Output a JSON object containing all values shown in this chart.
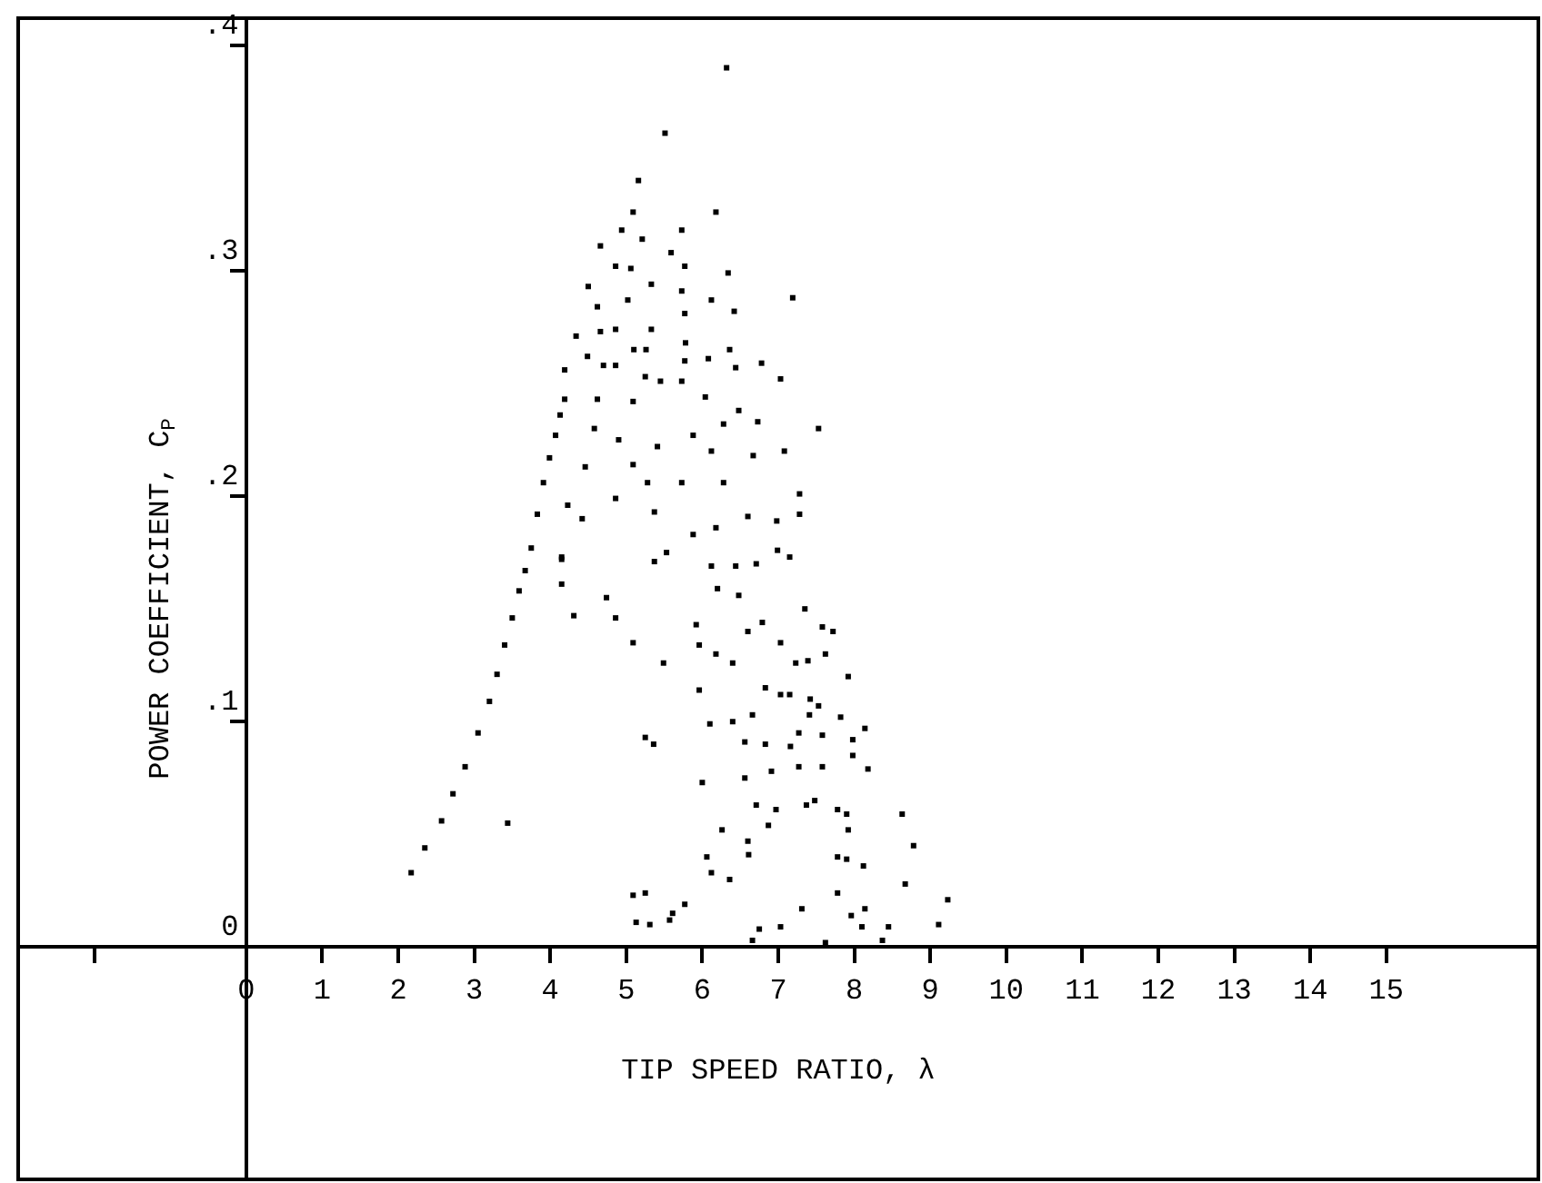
{
  "chart_data": {
    "type": "scatter",
    "xlabel": "TIP SPEED RATIO, λ",
    "ylabel": "POWER COEFFICIENT, C$_{P}$",
    "xlim": [
      -3,
      17
    ],
    "ylim": [
      -0.103,
      0.412
    ],
    "xticks": [
      {
        "value": -2,
        "label": null
      },
      0,
      1,
      2,
      3,
      4,
      5,
      6,
      7,
      8,
      9,
      10,
      11,
      12,
      13,
      14,
      15
    ],
    "yticks": [
      0,
      {
        "value": 0.1,
        "label": ".1"
      },
      {
        "value": 0.2,
        "label": ".2"
      },
      {
        "value": 0.3,
        "label": ".3"
      },
      {
        "value": 0.4,
        "label": ".4"
      }
    ],
    "grid": false,
    "marker": "square",
    "series": [
      {
        "color": "#000000",
        "x": [
          2.17,
          2.35,
          2.57,
          2.72,
          2.88,
          3.05,
          3.2,
          3.3,
          3.4,
          3.5,
          3.59,
          3.67,
          3.75,
          3.83,
          3.91,
          3.99,
          4.07,
          4.13,
          4.19,
          3.44,
          6.32,
          5.51,
          5.16,
          5.09,
          6.18,
          4.94,
          5.73,
          5.21,
          4.66,
          5.59,
          4.86,
          5.06,
          5.77,
          6.34,
          4.5,
          5.33,
          5.73,
          7.19,
          6.12,
          5.02,
          4.62,
          6.42,
          5.77,
          4.34,
          4.66,
          4.86,
          5.33,
          5.1,
          5.26,
          5.78,
          4.49,
          4.7,
          4.86,
          5.77,
          6.08,
          6.36,
          6.78,
          4.19,
          7.03,
          6.44,
          5.73,
          5.45,
          5.25,
          4.62,
          5.09,
          6.48,
          6.04,
          7.53,
          6.73,
          4.58,
          4.9,
          5.41,
          5.88,
          6.28,
          7.08,
          4.46,
          5.09,
          6.12,
          6.67,
          5.28,
          4.86,
          5.73,
          6.28,
          7.28,
          4.23,
          4.42,
          5.37,
          5.88,
          6.18,
          6.6,
          6.98,
          7.28,
          4.15,
          5.53,
          6.12,
          6.44,
          6.71,
          6.99,
          7.15,
          4.15,
          4.15,
          4.31,
          4.74,
          4.86,
          5.09,
          5.25,
          5.36,
          5.49,
          5.37,
          5.92,
          5.96,
          6.18,
          5.96,
          6.1,
          6.0,
          6.4,
          6.4,
          6.2,
          6.48,
          6.6,
          6.79,
          6.66,
          6.56,
          6.83,
          6.83,
          6.91,
          6.56,
          6.71,
          6.97,
          6.87,
          6.26,
          6.06,
          6.12,
          6.36,
          6.6,
          6.61,
          7.03,
          7.03,
          7.15,
          7.27,
          7.27,
          7.16,
          7.37,
          7.48,
          7.35,
          7.23,
          7.39,
          7.62,
          7.58,
          7.72,
          7.42,
          7.53,
          7.41,
          7.58,
          7.58,
          7.82,
          7.92,
          7.98,
          7.98,
          8.14,
          8.18,
          7.78,
          7.9,
          7.92,
          7.78,
          7.9,
          8.12,
          8.63,
          8.78,
          8.67,
          9.23,
          9.11,
          7.78,
          7.96,
          8.14,
          8.1,
          8.45,
          8.37,
          7.31,
          7.03,
          6.75,
          6.66,
          7.62,
          5.09,
          5.25,
          5.13,
          5.31,
          5.57,
          5.61,
          5.77
        ],
        "values": [
          0.033,
          0.044,
          0.056,
          0.068,
          0.08,
          0.095,
          0.109,
          0.121,
          0.134,
          0.146,
          0.158,
          0.167,
          0.177,
          0.192,
          0.206,
          0.217,
          0.227,
          0.236,
          0.243,
          0.055,
          0.39,
          0.361,
          0.34,
          0.326,
          0.326,
          0.318,
          0.318,
          0.314,
          0.311,
          0.308,
          0.302,
          0.301,
          0.302,
          0.299,
          0.293,
          0.294,
          0.291,
          0.288,
          0.287,
          0.287,
          0.284,
          0.282,
          0.281,
          0.271,
          0.273,
          0.274,
          0.274,
          0.265,
          0.265,
          0.268,
          0.262,
          0.258,
          0.258,
          0.26,
          0.261,
          0.265,
          0.259,
          0.256,
          0.252,
          0.257,
          0.251,
          0.251,
          0.253,
          0.243,
          0.242,
          0.238,
          0.244,
          0.23,
          0.233,
          0.23,
          0.225,
          0.222,
          0.227,
          0.232,
          0.22,
          0.213,
          0.214,
          0.22,
          0.218,
          0.206,
          0.199,
          0.206,
          0.206,
          0.201,
          0.196,
          0.19,
          0.193,
          0.183,
          0.186,
          0.191,
          0.189,
          0.192,
          0.172,
          0.175,
          0.169,
          0.169,
          0.17,
          0.176,
          0.173,
          0.173,
          0.161,
          0.147,
          0.155,
          0.146,
          0.135,
          0.093,
          0.09,
          0.126,
          0.171,
          0.143,
          0.134,
          0.13,
          0.114,
          0.099,
          0.073,
          0.126,
          0.1,
          0.159,
          0.156,
          0.14,
          0.144,
          0.103,
          0.091,
          0.115,
          0.09,
          0.078,
          0.075,
          0.063,
          0.061,
          0.054,
          0.052,
          0.04,
          0.033,
          0.03,
          0.047,
          0.041,
          0.135,
          0.112,
          0.112,
          0.095,
          0.08,
          0.089,
          0.063,
          0.065,
          0.15,
          0.126,
          0.127,
          0.13,
          0.142,
          0.14,
          0.11,
          0.107,
          0.103,
          0.094,
          0.08,
          0.102,
          0.12,
          0.092,
          0.085,
          0.097,
          0.079,
          0.061,
          0.059,
          0.052,
          0.04,
          0.039,
          0.036,
          0.059,
          0.045,
          0.028,
          0.021,
          0.01,
          0.024,
          0.014,
          0.017,
          0.009,
          0.009,
          0.003,
          0.017,
          0.009,
          0.008,
          0.003,
          0.002,
          0.023,
          0.024,
          0.011,
          0.01,
          0.012,
          0.015,
          0.019
        ]
      }
    ]
  }
}
